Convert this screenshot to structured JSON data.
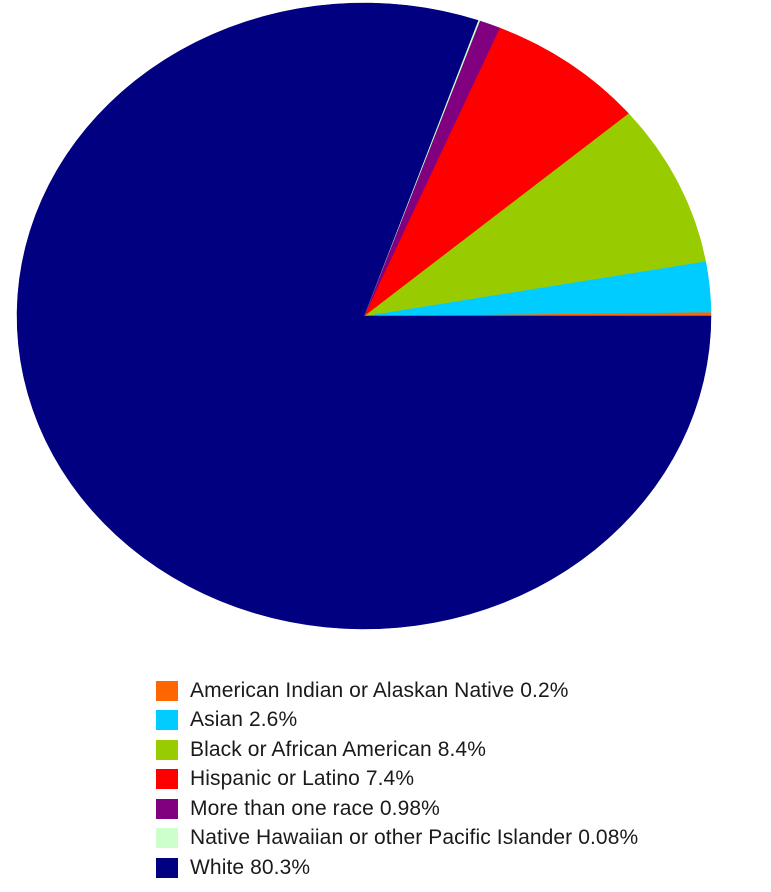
{
  "chart_data": {
    "type": "pie",
    "title": "",
    "grid": false,
    "legend_position": "bottom",
    "start_angle_deg": 0,
    "direction": "counterclockwise",
    "slices": [
      {
        "label": "American Indian or Alaskan Native",
        "value": 0.2,
        "display": "0.2%",
        "color": "#ff6600"
      },
      {
        "label": "Asian",
        "value": 2.6,
        "display": "2.6%",
        "color": "#00ccff"
      },
      {
        "label": "Black or African American",
        "value": 8.4,
        "display": "8.4%",
        "color": "#99cc00"
      },
      {
        "label": "Hispanic or Latino",
        "value": 7.4,
        "display": "7.4%",
        "color": "#ff0000"
      },
      {
        "label": "More than one race",
        "value": 0.98,
        "display": "0.98%",
        "color": "#800080"
      },
      {
        "label": "Native Hawaiian or other Pacific Islander",
        "value": 0.08,
        "display": "0.08%",
        "color": "#ccffcc"
      },
      {
        "label": "White",
        "value": 80.3,
        "display": "80.3%",
        "color": "#000080"
      }
    ]
  }
}
